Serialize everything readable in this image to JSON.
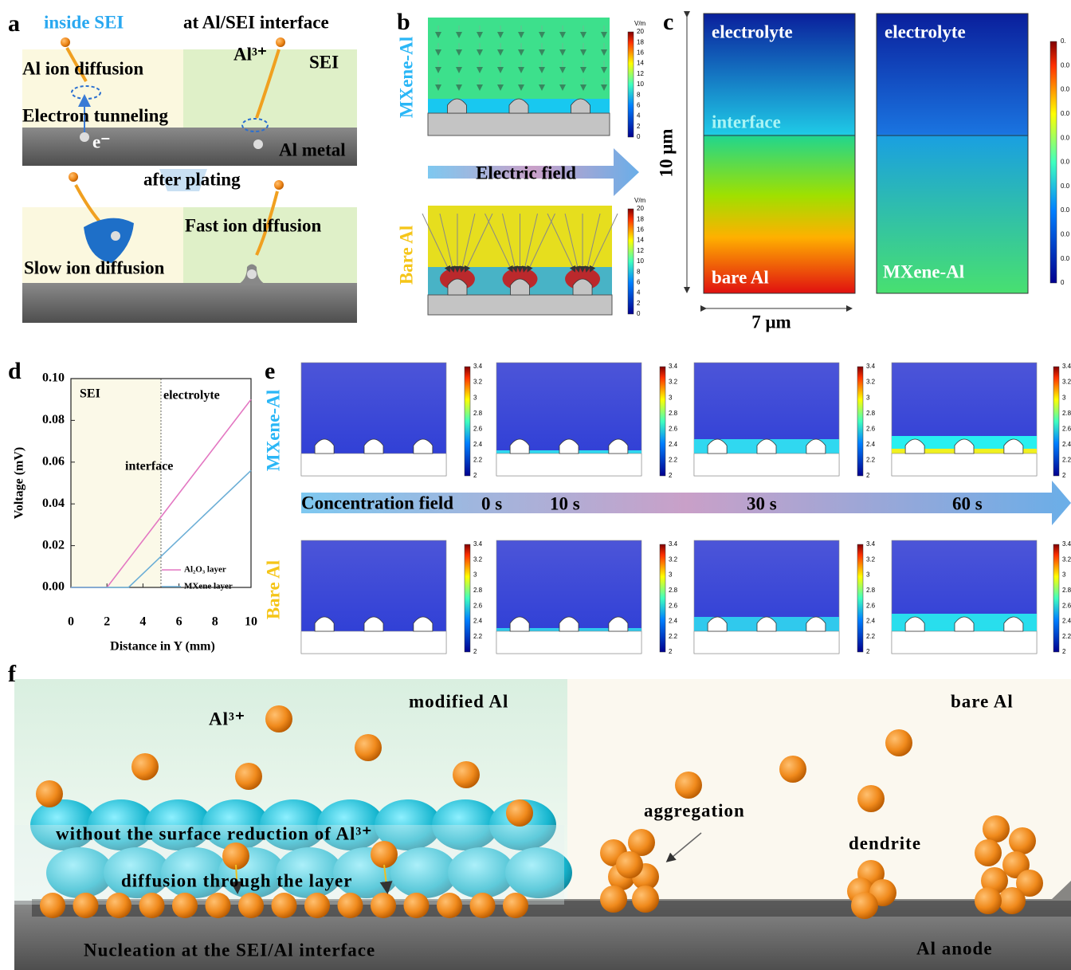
{
  "panels": {
    "a": {
      "label": "a",
      "inside_sei": "inside SEI",
      "interface_title": "at Al/SEI interface",
      "ion_diffusion": "Al ion diffusion",
      "al_ion": "Al³⁺",
      "sei": "SEI",
      "electron_tunneling": "Electron tunneling",
      "electron": "e⁻",
      "al_metal": "Al metal",
      "after_plating": "after plating",
      "fast": "Fast ion diffusion",
      "slow": "Slow ion diffusion"
    },
    "b": {
      "label": "b",
      "top": "MXene-Al",
      "bottom": "Bare Al",
      "arrow": "Electric field",
      "colorbar_unit": "V/m",
      "colorbar_ticks": [
        20,
        18,
        16,
        14,
        12,
        10,
        8,
        6,
        4,
        2,
        0
      ]
    },
    "c": {
      "label": "c",
      "electrolyte_left": "electrolyte",
      "interface": "interface",
      "bare": "bare Al",
      "electrolyte_right": "electrolyte",
      "mxene": "MXene-Al",
      "height": "10 μm",
      "width": "7 μm",
      "colorbar_ticks": [
        "0.",
        "0.0",
        "0.0",
        "0.0",
        "0.0",
        "0.0",
        "0.0",
        "0.0",
        "0.0",
        "0.0",
        "0"
      ]
    },
    "e": {
      "label": "e",
      "top": "MXene-Al",
      "bottom": "Bare Al",
      "arrow": "Concentration field",
      "times": [
        "0 s",
        "10 s",
        "30 s",
        "60 s"
      ],
      "colorbar_ticks": [
        3.4,
        3.2,
        3,
        2.8,
        2.6,
        2.4,
        2.2,
        2
      ]
    },
    "f": {
      "label": "f",
      "modified": "modified Al",
      "al_ion": "Al³⁺",
      "bare": "bare Al",
      "aggregation": "aggregation",
      "dendrite": "dendrite",
      "reduction": "without the surface reduction of Al³⁺",
      "diffusion": "diffusion through the layer",
      "nucleation": "Nucleation at the SEI/Al interface",
      "anode": "Al anode"
    }
  },
  "chart_data": {
    "type": "line",
    "label": "d",
    "xlabel": "Distance in Y (mm)",
    "ylabel": "Voltage (mV)",
    "xlim": [
      0,
      10
    ],
    "ylim": [
      0,
      0.1
    ],
    "xticks": [
      0,
      2,
      4,
      6,
      8,
      10
    ],
    "yticks": [
      {
        "value": 0,
        "label": "0.00"
      },
      {
        "value": 0.02,
        "label": "0.02"
      },
      {
        "value": 0.04,
        "label": "0.04"
      },
      {
        "value": 0.06,
        "label": "0.06"
      },
      {
        "value": 0.08,
        "label": "0.08"
      },
      {
        "value": 0.1,
        "label": "0.10"
      }
    ],
    "series": [
      {
        "name": "Al₂O₃ layer",
        "color": "#e377c2",
        "x": [
          0,
          2,
          10
        ],
        "values": [
          0,
          0,
          0.09
        ]
      },
      {
        "name": "MXene layer",
        "color": "#6baed6",
        "x": [
          0,
          3.2,
          10
        ],
        "values": [
          0,
          0,
          0.056
        ]
      }
    ],
    "annotations": [
      {
        "text": "SEI"
      },
      {
        "text": "electrolyte"
      },
      {
        "text": "interface",
        "x": 5
      }
    ],
    "legend": "lower right"
  }
}
